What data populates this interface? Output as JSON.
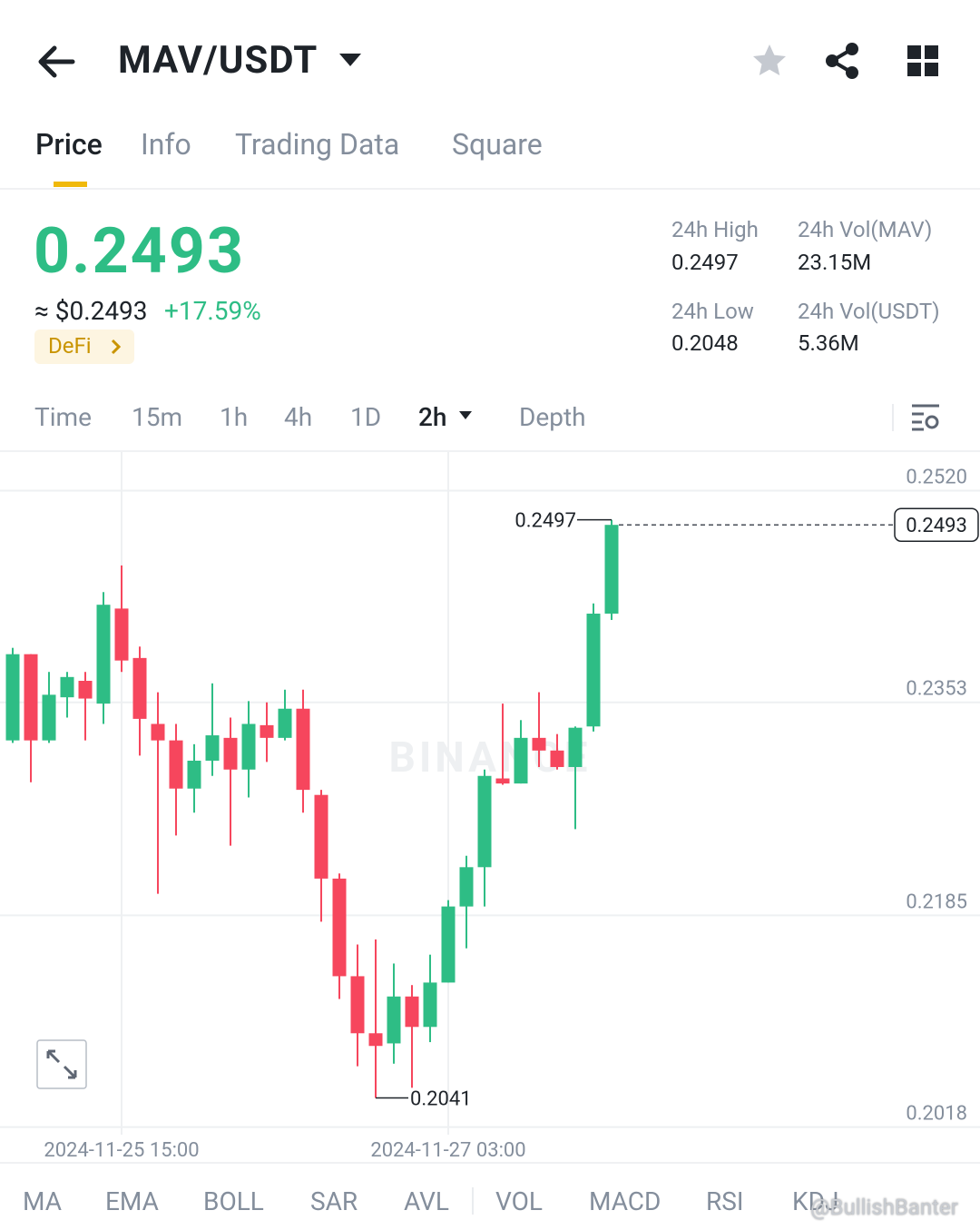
{
  "header": {
    "pair": "MAV/USDT"
  },
  "tabs": [
    "Price",
    "Info",
    "Trading Data",
    "Square"
  ],
  "ticker": {
    "price": "0.2493",
    "approx": "≈ $0.2493",
    "change": "+17.59%",
    "tag": "DeFi"
  },
  "stats": [
    {
      "label": "24h High",
      "value": "0.2497"
    },
    {
      "label": "24h Vol(MAV)",
      "value": "23.15M"
    },
    {
      "label": "24h Low",
      "value": "0.2048"
    },
    {
      "label": "24h Vol(USDT)",
      "value": "5.36M"
    }
  ],
  "intervals": [
    "Time",
    "15m",
    "1h",
    "4h",
    "1D",
    "2h",
    "Depth"
  ],
  "chart_data": {
    "type": "candlestick",
    "watermark": "BINANCE",
    "categories": [
      null,
      null,
      null,
      null,
      null,
      null,
      "2024-11-25 15:00",
      null,
      null,
      null,
      null,
      null,
      null,
      null,
      null,
      null,
      null,
      null,
      null,
      null,
      null,
      null,
      null,
      null,
      "2024-11-27 03:00",
      null,
      null,
      null,
      null,
      null,
      null,
      null,
      null,
      null
    ],
    "open": [
      0.2323,
      0.2391,
      0.2323,
      0.2357,
      0.237,
      0.2352,
      0.2427,
      0.2388,
      0.2336,
      0.2323,
      0.2285,
      0.2307,
      0.2325,
      0.23,
      0.2335,
      0.2325,
      0.2348,
      0.228,
      0.2214,
      0.2137,
      0.2092,
      0.2084,
      0.2121,
      0.2097,
      0.2132,
      0.2192,
      0.2223,
      0.2293,
      0.2289,
      0.2325,
      0.2315,
      0.2302,
      0.2334,
      0.2423
    ],
    "high": [
      0.2396,
      0.2391,
      0.2377,
      0.2377,
      0.2377,
      0.244,
      0.2461,
      0.2397,
      0.2361,
      0.2336,
      0.232,
      0.2368,
      0.2341,
      0.2354,
      0.2353,
      0.2363,
      0.2363,
      0.2284,
      0.2218,
      0.2162,
      0.2166,
      0.2147,
      0.213,
      0.2154,
      0.2197,
      0.2232,
      0.23,
      0.2352,
      0.2339,
      0.2361,
      0.2328,
      0.2334,
      0.2431,
      0.2497
    ],
    "low": [
      0.2321,
      0.229,
      0.2321,
      0.2341,
      0.2323,
      0.2336,
      0.2377,
      0.2311,
      0.2202,
      0.2248,
      0.2266,
      0.2295,
      0.224,
      0.2278,
      0.2306,
      0.2323,
      0.2266,
      0.218,
      0.2119,
      0.2066,
      0.2041,
      0.2068,
      0.2049,
      0.2085,
      0.2132,
      0.2159,
      0.2192,
      0.2288,
      0.2289,
      0.2302,
      0.23,
      0.2253,
      0.233,
      0.2418
    ],
    "close": [
      0.2391,
      0.2323,
      0.2359,
      0.2373,
      0.2356,
      0.243,
      0.2386,
      0.234,
      0.2323,
      0.2285,
      0.2307,
      0.2327,
      0.23,
      0.2336,
      0.2325,
      0.2348,
      0.2284,
      0.2214,
      0.2137,
      0.2092,
      0.2082,
      0.2121,
      0.2097,
      0.2132,
      0.2192,
      0.2223,
      0.2295,
      0.2289,
      0.2325,
      0.2315,
      0.2302,
      0.2333,
      0.2423,
      0.2493
    ],
    "up_color": "#2ebd85",
    "down_color": "#f6465d",
    "ylim": [
      0.2012,
      0.2549
    ],
    "yticks": [
      {
        "value": 0.252,
        "label": "0.2520"
      },
      0.2353,
      0.2185,
      0.2018
    ],
    "grid": true,
    "annotations": {
      "high": 0.2497,
      "low": 0.2041,
      "last": 0.2493
    }
  },
  "indicators": [
    "MA",
    "EMA",
    "BOLL",
    "SAR",
    "AVL",
    "VOL",
    "MACD",
    "RSI",
    "KDJ"
  ],
  "watermark": "@BullishBanter"
}
